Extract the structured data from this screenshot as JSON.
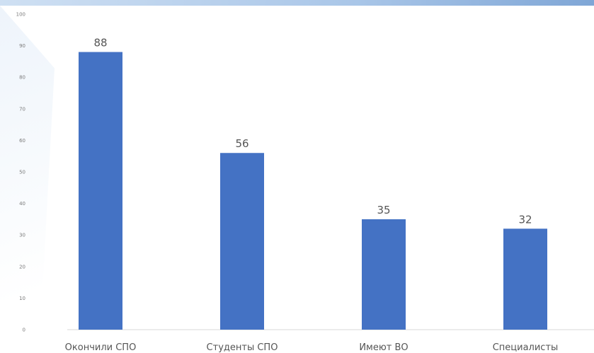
{
  "chart_data": {
    "type": "bar",
    "categories": [
      "Окончили СПО",
      "Студенты СПО",
      "Имеют ВО",
      "Специалисты"
    ],
    "values": [
      88,
      56,
      35,
      32
    ],
    "title": "",
    "xlabel": "",
    "ylabel": "",
    "ylim": [
      0,
      100
    ],
    "yticks": [
      0,
      10,
      20,
      30,
      40,
      50,
      60,
      70,
      80,
      90,
      100
    ],
    "grid": false,
    "legend": "none",
    "bar_color": "#4472c4"
  }
}
